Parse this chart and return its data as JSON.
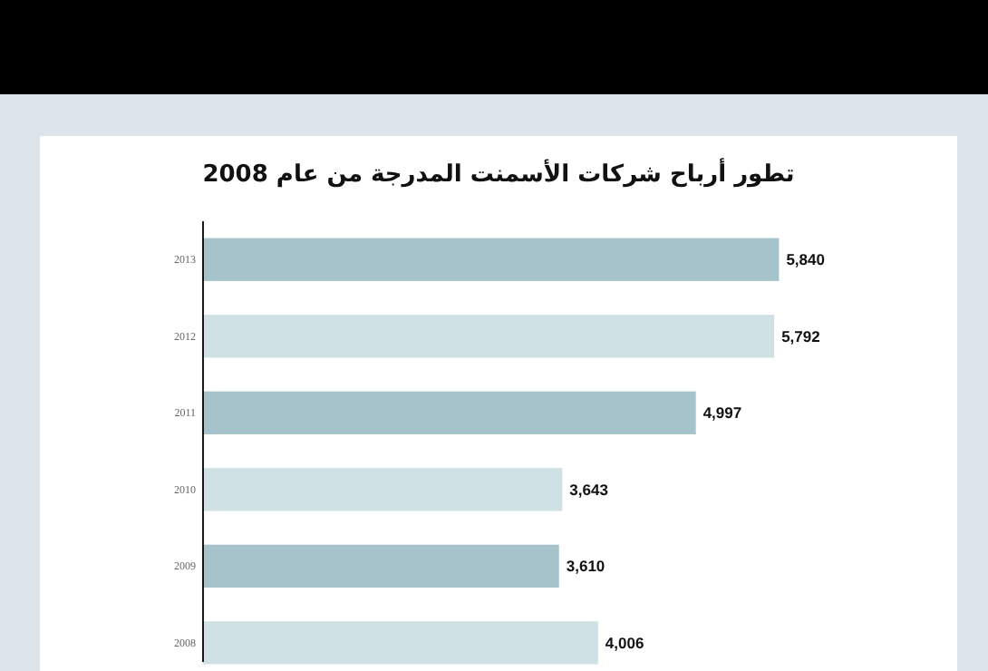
{
  "chart_data": {
    "type": "bar",
    "orientation": "horizontal",
    "title": "تطور أرباح شركات الأسمنت المدرجة من عام 2008",
    "categories": [
      "2013",
      "2012",
      "2011",
      "2010",
      "2009",
      "2008"
    ],
    "values": [
      5840,
      5792,
      4997,
      3643,
      3610,
      4006
    ],
    "value_labels": [
      "5,840",
      "5,792",
      "4,997",
      "3,643",
      "3,610",
      "4,006"
    ],
    "colors": [
      "#a6c3cb",
      "#d0e1e5",
      "#a6c3cb",
      "#d0e1e5",
      "#a6c3cb",
      "#d0e1e5"
    ]
  }
}
